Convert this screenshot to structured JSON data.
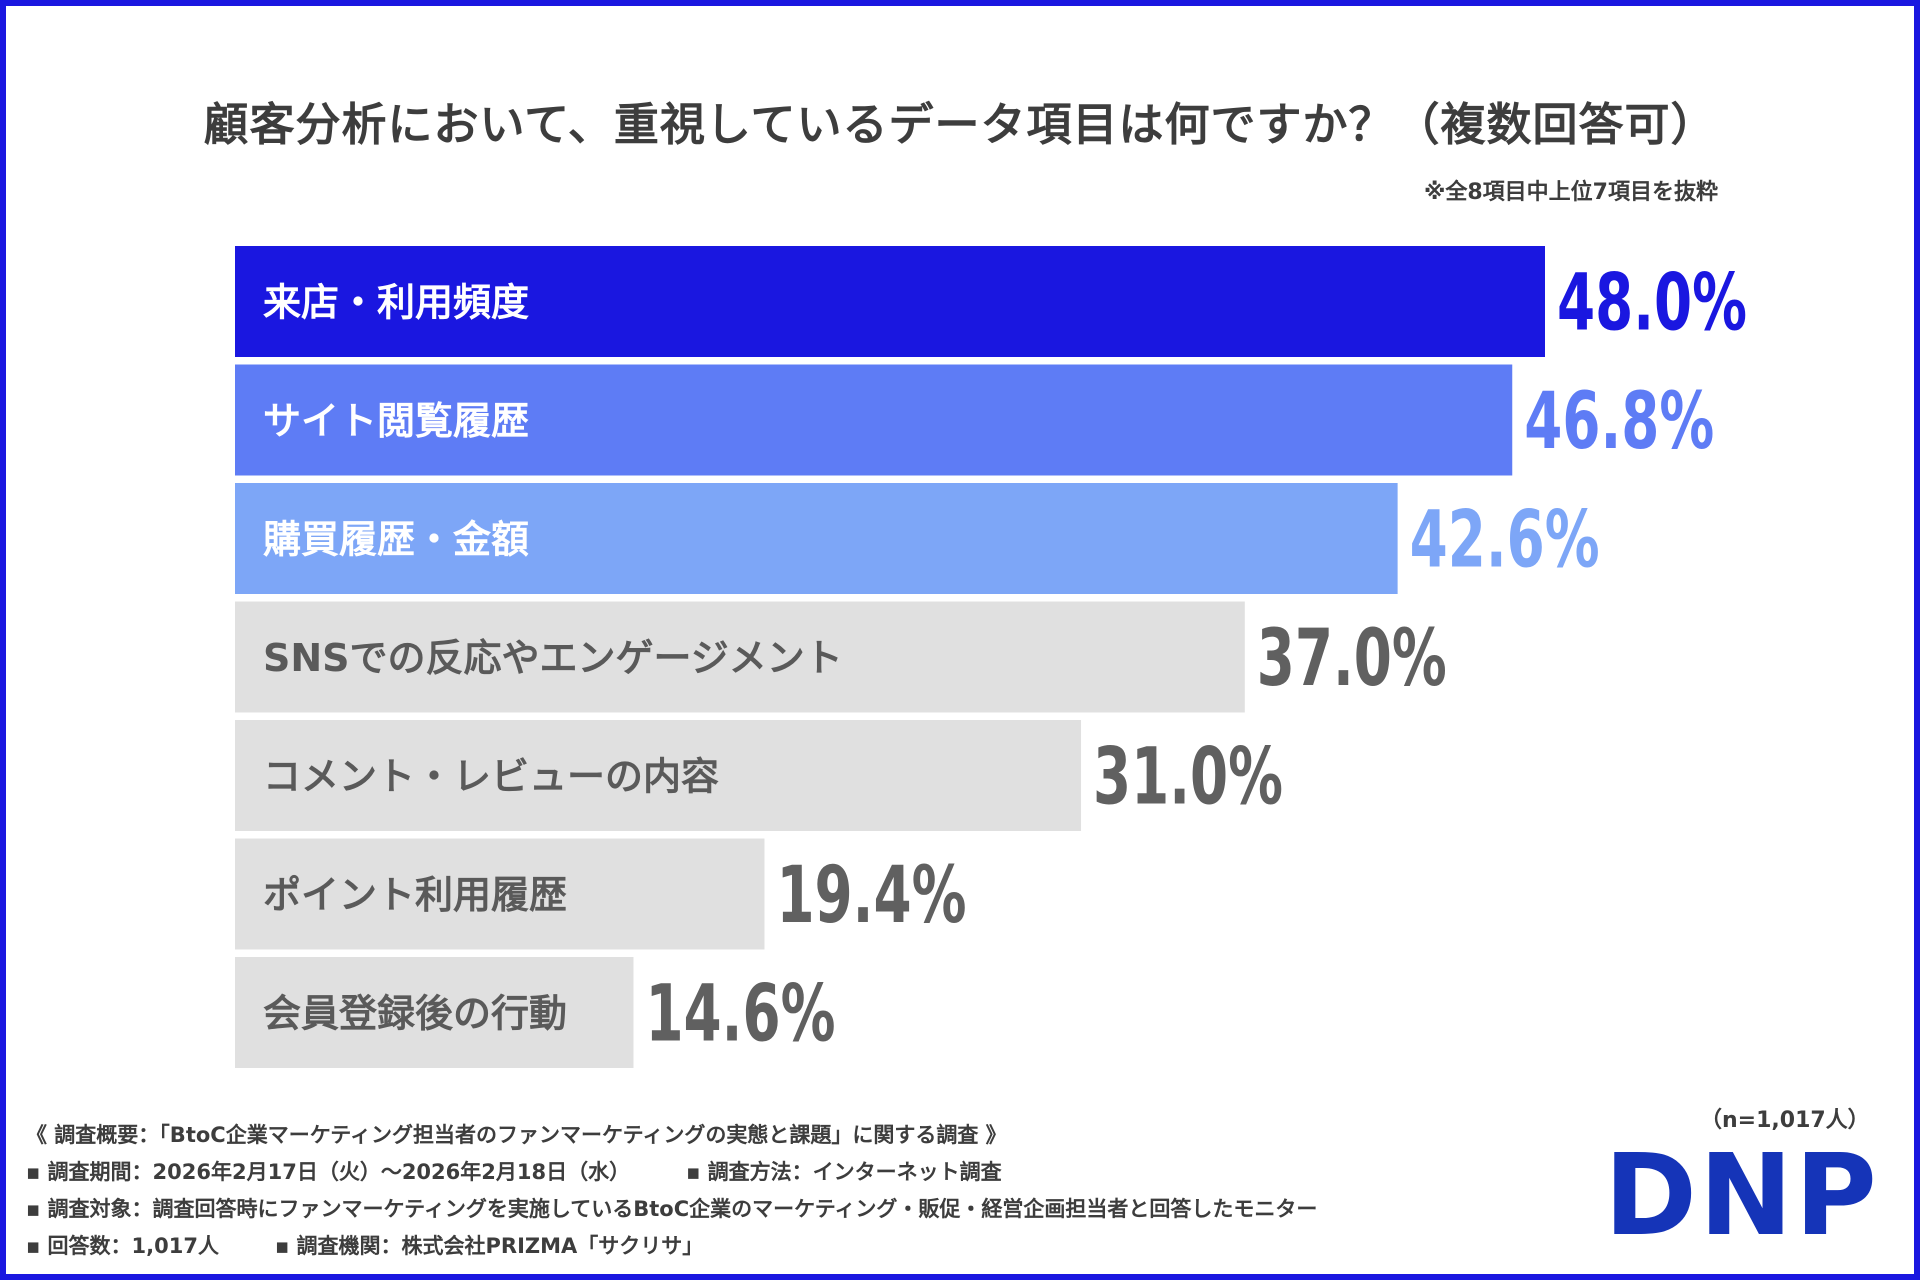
{
  "title": "顧客分析において、重視しているデータ項目は何ですか？（複数回答可）",
  "note": "※全8項目中上位7項目を抜粋",
  "chart_data": {
    "type": "bar",
    "orientation": "horizontal",
    "title": "顧客分析において、重視しているデータ項目は何ですか？（複数回答可）",
    "categories": [
      "来店・利用頻度",
      "サイト閲覧履歴",
      "購買履歴・金額",
      "SNSでの反応やエンゲージメント",
      "コメント・レビューの内容",
      "ポイント利用履歴",
      "会員登録後の行動"
    ],
    "values": [
      48.0,
      46.8,
      42.6,
      37.0,
      31.0,
      19.4,
      14.6
    ],
    "value_labels": [
      "48.0%",
      "46.8%",
      "42.6%",
      "37.0%",
      "31.0%",
      "19.4%",
      "14.6%"
    ],
    "unit": "%",
    "bar_colors": [
      "#1a17e0",
      "#5e7cf5",
      "#7da6f7",
      "#e0e0e0",
      "#e0e0e0",
      "#e0e0e0",
      "#e0e0e0"
    ],
    "value_colors": [
      "#1a17e0",
      "#5e7cf5",
      "#7da6f7",
      "#606060",
      "#606060",
      "#606060",
      "#606060"
    ],
    "label_colors": [
      "#ffffff",
      "#ffffff",
      "#ffffff",
      "#5a5a5a",
      "#5a5a5a",
      "#5a5a5a",
      "#5a5a5a"
    ],
    "grid": false,
    "legend": "none"
  },
  "footer": {
    "survey_title": "《 調査概要：「BtoC企業マーケティング担当者のファンマーケティングの実態と課題」に関する調査 》",
    "period": "▪ 調査期間：2026年2月17日（火）～2026年2月18日（水）",
    "method": "▪ 調査方法：インターネット調査",
    "target": "▪ 調査対象：調査回答時にファンマーケティングを実施しているBtoC企業のマーケティング・販促・経営企画担当者と回答したモニター",
    "respondents": "▪ 回答数：1,017人",
    "organization": "▪ 調査機関：株式会社PRIZMA「サクリサ」",
    "sample_size": "（n=1,017人）"
  },
  "logo": {
    "text": "DNP",
    "color": "#1534b8"
  }
}
